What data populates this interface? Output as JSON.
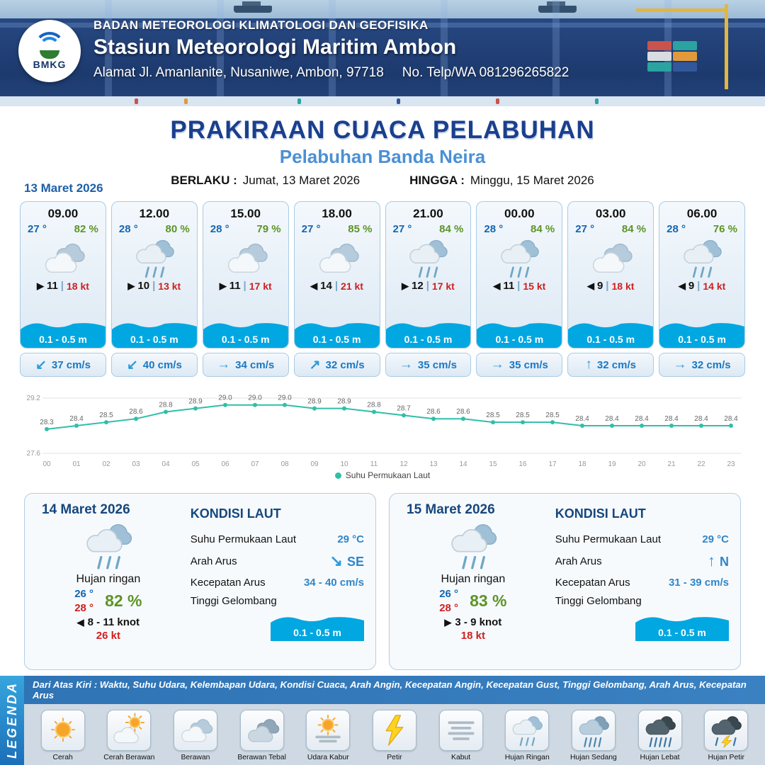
{
  "header": {
    "logo_text": "BMKG",
    "agency": "BADAN METEOROLOGI KLIMATOLOGI DAN GEOFISIKA",
    "station": "Stasiun Meteorologi Maritim Ambon",
    "address": "Alamat Jl. Amanlanite, Nusaniwe, Ambon, 97718",
    "phone": "No. Telp/WA  081296265822"
  },
  "title": {
    "main": "PRAKIRAAN CUACA PELABUHAN",
    "subtitle": "Pelabuhan Banda Neira",
    "valid_from_label": "BERLAKU :",
    "valid_from": "Jumat, 13 Maret 2026",
    "valid_to_label": "HINGGA :",
    "valid_to": "Minggu, 15 Maret 2026"
  },
  "forecast": {
    "date": "13 Maret 2026",
    "sep": "|",
    "cards": [
      {
        "time": "09.00",
        "temp": "27 °",
        "humidity": "82 %",
        "icon": "berawan",
        "wind_dir": "▶",
        "wind": "11",
        "gust": "18 kt",
        "wave": "0.1 - 0.5 m",
        "current_dir": "↙",
        "current": "37 cm/s"
      },
      {
        "time": "12.00",
        "temp": "28 °",
        "humidity": "80 %",
        "icon": "hujan-ringan",
        "wind_dir": "▶",
        "wind": "10",
        "gust": "13 kt",
        "wave": "0.1 - 0.5 m",
        "current_dir": "↙",
        "current": "40 cm/s"
      },
      {
        "time": "15.00",
        "temp": "28 °",
        "humidity": "79 %",
        "icon": "berawan",
        "wind_dir": "▶",
        "wind": "11",
        "gust": "17 kt",
        "wave": "0.1 - 0.5 m",
        "current_dir": "→",
        "current": "34 cm/s"
      },
      {
        "time": "18.00",
        "temp": "27 °",
        "humidity": "85 %",
        "icon": "berawan",
        "wind_dir": "◀",
        "wind": "14",
        "gust": "21 kt",
        "wave": "0.1 - 0.5 m",
        "current_dir": "↗",
        "current": "32 cm/s"
      },
      {
        "time": "21.00",
        "temp": "27 °",
        "humidity": "84 %",
        "icon": "hujan-ringan",
        "wind_dir": "▶",
        "wind": "12",
        "gust": "17 kt",
        "wave": "0.1 - 0.5 m",
        "current_dir": "→",
        "current": "35 cm/s"
      },
      {
        "time": "00.00",
        "temp": "28 °",
        "humidity": "84 %",
        "icon": "hujan-ringan",
        "wind_dir": "◀",
        "wind": "11",
        "gust": "15 kt",
        "wave": "0.1 - 0.5 m",
        "current_dir": "→",
        "current": "35 cm/s"
      },
      {
        "time": "03.00",
        "temp": "27 °",
        "humidity": "84 %",
        "icon": "berawan",
        "wind_dir": "◀",
        "wind": "9",
        "gust": "18 kt",
        "wave": "0.1 - 0.5 m",
        "current_dir": "↑",
        "current": "32 cm/s"
      },
      {
        "time": "06.00",
        "temp": "28 °",
        "humidity": "76 %",
        "icon": "hujan-ringan",
        "wind_dir": "◀",
        "wind": "9",
        "gust": "14 kt",
        "wave": "0.1 - 0.5 m",
        "current_dir": "→",
        "current": "32 cm/s"
      }
    ]
  },
  "chart_data": {
    "type": "line",
    "x": [
      "00",
      "01",
      "02",
      "03",
      "04",
      "05",
      "06",
      "07",
      "08",
      "09",
      "10",
      "11",
      "12",
      "13",
      "14",
      "15",
      "16",
      "17",
      "18",
      "19",
      "20",
      "21",
      "22",
      "23"
    ],
    "series": [
      {
        "name": "Suhu Permukaan Laut",
        "values": [
          28.3,
          28.4,
          28.5,
          28.6,
          28.8,
          28.9,
          29.0,
          29.0,
          29.0,
          28.9,
          28.9,
          28.8,
          28.7,
          28.6,
          28.6,
          28.5,
          28.5,
          28.5,
          28.4,
          28.4,
          28.4,
          28.4,
          28.4,
          28.4
        ]
      }
    ],
    "ylim": [
      27.6,
      29.2
    ],
    "line_color": "#2fbfa8",
    "grid": "horizontal-minmax",
    "legend_position": "bottom"
  },
  "daily": [
    {
      "date": "14 Maret 2026",
      "icon": "hujan-ringan",
      "condition": "Hujan ringan",
      "temp_min": "26 °",
      "temp_max": "28 °",
      "humidity": "82 %",
      "wind_dir": "◀",
      "wind": "8  - 11 knot",
      "gust": "26 kt",
      "sea": {
        "title": "KONDISI LAUT",
        "sst_label": "Suhu Permukaan Laut",
        "sst": "29 °C",
        "current_dir_label": "Arah Arus",
        "current_dir_arrow": "↘",
        "current_dir": "SE",
        "current_speed_label": "Kecepatan Arus",
        "current_speed": "34 - 40 cm/s",
        "wave_label": "Tinggi Gelombang",
        "wave": "0.1 - 0.5 m"
      }
    },
    {
      "date": "15 Maret 2026",
      "icon": "hujan-ringan",
      "condition": "Hujan ringan",
      "temp_min": "26 °",
      "temp_max": "28 °",
      "humidity": "83 %",
      "wind_dir": "▶",
      "wind": "3  - 9 knot",
      "gust": "18 kt",
      "sea": {
        "title": "KONDISI LAUT",
        "sst_label": "Suhu Permukaan Laut",
        "sst": "29 °C",
        "current_dir_label": "Arah Arus",
        "current_dir_arrow": "↑",
        "current_dir": "N",
        "current_speed_label": "Kecepatan Arus",
        "current_speed": "31 - 39 cm/s",
        "wave_label": "Tinggi Gelombang",
        "wave": "0.1 - 0.5 m"
      }
    }
  ],
  "legend": {
    "title": "LEGENDA",
    "description": "Dari Atas Kiri : Waktu, Suhu Udara, Kelembapan Udara, Kondisi Cuaca, Arah Angin, Kecepatan Angin, Kecepatan Gust, Tinggi Gelombang, Arah Arus, Kecepatan Arus",
    "items": [
      {
        "label": "Cerah",
        "icon": "cerah"
      },
      {
        "label": "Cerah Berawan",
        "icon": "cerah-berawan"
      },
      {
        "label": "Berawan",
        "icon": "berawan"
      },
      {
        "label": "Berawan Tebal",
        "icon": "berawan-tebal"
      },
      {
        "label": "Udara Kabur",
        "icon": "udara-kabur"
      },
      {
        "label": "Petir",
        "icon": "petir"
      },
      {
        "label": "Kabut",
        "icon": "kabut"
      },
      {
        "label": "Hujan Ringan",
        "icon": "hujan-ringan"
      },
      {
        "label": "Hujan Sedang",
        "icon": "hujan-sedang"
      },
      {
        "label": "Hujan Lebat",
        "icon": "hujan-lebat"
      },
      {
        "label": "Hujan Petir",
        "icon": "hujan-petir"
      }
    ]
  },
  "colors": {
    "header_navy": "#1d3a6e",
    "title_blue": "#1b3f8e",
    "subtitle_blue": "#4b90d4",
    "wave_blue": "#00a7e1",
    "temp_blue": "#1266b3",
    "humidity_green": "#5d9426",
    "gust_red": "#cf1f1f",
    "chart_teal": "#2fbfa8"
  }
}
